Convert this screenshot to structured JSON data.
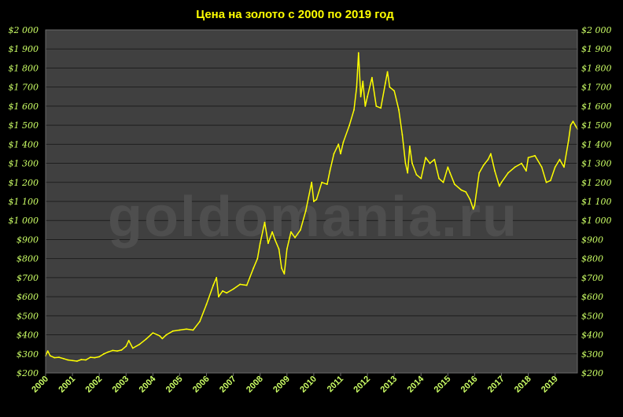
{
  "title": "Цена на золото с 2000 по 2019 год",
  "watermark": "goldomania.ru",
  "colors": {
    "background": "#000000",
    "plot_area": "#404040",
    "gridline": "#1e1e1e",
    "line": "#ffff00",
    "tick_label": "#ccff66",
    "title": "#ffff00",
    "watermark": "#4e4e4e"
  },
  "chart_data": {
    "type": "line",
    "title": "Цена на золото с 2000 по 2019 год",
    "xlabel": "",
    "ylabel": "",
    "ylim": [
      200,
      2000
    ],
    "xlim": [
      2000,
      2019.83
    ],
    "grid": "horizontal",
    "y_ticks": [
      {
        "value": 2000,
        "label": "$2 000"
      },
      {
        "value": 1900,
        "label": "$1 900"
      },
      {
        "value": 1800,
        "label": "$1 800"
      },
      {
        "value": 1700,
        "label": "$1 700"
      },
      {
        "value": 1600,
        "label": "$1 600"
      },
      {
        "value": 1500,
        "label": "$1 500"
      },
      {
        "value": 1400,
        "label": "$1 400"
      },
      {
        "value": 1300,
        "label": "$1 300"
      },
      {
        "value": 1200,
        "label": "$1 200"
      },
      {
        "value": 1100,
        "label": "$1 100"
      },
      {
        "value": 1000,
        "label": "$1 000"
      },
      {
        "value": 900,
        "label": "$900"
      },
      {
        "value": 800,
        "label": "$800"
      },
      {
        "value": 700,
        "label": "$700"
      },
      {
        "value": 600,
        "label": "$600"
      },
      {
        "value": 500,
        "label": "$500"
      },
      {
        "value": 400,
        "label": "$400"
      },
      {
        "value": 300,
        "label": "$300"
      },
      {
        "value": 200,
        "label": "$200"
      }
    ],
    "x_ticks": [
      {
        "value": 2000,
        "label": "2000"
      },
      {
        "value": 2001,
        "label": "2001"
      },
      {
        "value": 2002,
        "label": "2002"
      },
      {
        "value": 2003,
        "label": "2003"
      },
      {
        "value": 2004,
        "label": "2004"
      },
      {
        "value": 2005,
        "label": "2005"
      },
      {
        "value": 2006,
        "label": "2006"
      },
      {
        "value": 2007,
        "label": "2007"
      },
      {
        "value": 2008,
        "label": "2008"
      },
      {
        "value": 2009,
        "label": "2009"
      },
      {
        "value": 2010,
        "label": "2010"
      },
      {
        "value": 2011,
        "label": "2011"
      },
      {
        "value": 2012,
        "label": "2012"
      },
      {
        "value": 2013,
        "label": "2013"
      },
      {
        "value": 2014,
        "label": "2014"
      },
      {
        "value": 2015,
        "label": "2015"
      },
      {
        "value": 2016,
        "label": "2016"
      },
      {
        "value": 2017,
        "label": "2017"
      },
      {
        "value": 2018,
        "label": "2018"
      },
      {
        "value": 2019,
        "label": "2019"
      }
    ],
    "series": [
      {
        "x": [
          2000.0,
          2000.08,
          2000.17,
          2000.33,
          2000.5,
          2000.67,
          2000.83,
          2001.0,
          2001.17,
          2001.33,
          2001.5,
          2001.67,
          2001.83,
          2002.0,
          2002.17,
          2002.33,
          2002.5,
          2002.67,
          2002.83,
          2003.0,
          2003.1,
          2003.25,
          2003.5,
          2003.75,
          2004.0,
          2004.25,
          2004.35,
          2004.5,
          2004.75,
          2005.0,
          2005.25,
          2005.5,
          2005.75,
          2006.0,
          2006.25,
          2006.37,
          2006.45,
          2006.6,
          2006.75,
          2007.0,
          2007.25,
          2007.5,
          2007.75,
          2007.9,
          2008.0,
          2008.17,
          2008.3,
          2008.45,
          2008.55,
          2008.7,
          2008.8,
          2008.9,
          2009.0,
          2009.15,
          2009.3,
          2009.5,
          2009.7,
          2009.92,
          2010.0,
          2010.1,
          2010.3,
          2010.5,
          2010.6,
          2010.75,
          2010.92,
          2011.0,
          2011.1,
          2011.33,
          2011.5,
          2011.6,
          2011.67,
          2011.75,
          2011.83,
          2011.92,
          2012.0,
          2012.17,
          2012.33,
          2012.5,
          2012.67,
          2012.75,
          2012.83,
          2013.0,
          2013.17,
          2013.3,
          2013.42,
          2013.5,
          2013.58,
          2013.67,
          2013.83,
          2014.0,
          2014.17,
          2014.33,
          2014.5,
          2014.67,
          2014.83,
          2015.0,
          2015.08,
          2015.25,
          2015.5,
          2015.67,
          2015.83,
          2015.95,
          2016.0,
          2016.17,
          2016.33,
          2016.5,
          2016.6,
          2016.75,
          2016.92,
          2017.0,
          2017.25,
          2017.5,
          2017.75,
          2017.92,
          2018.0,
          2018.25,
          2018.5,
          2018.67,
          2018.83,
          2019.0,
          2019.17,
          2019.33,
          2019.5,
          2019.58,
          2019.67,
          2019.75,
          2019.83
        ],
        "y": [
          290,
          315,
          290,
          280,
          282,
          275,
          268,
          265,
          262,
          270,
          268,
          282,
          280,
          285,
          300,
          310,
          318,
          315,
          320,
          340,
          370,
          330,
          350,
          378,
          410,
          395,
          380,
          400,
          420,
          425,
          430,
          425,
          470,
          560,
          660,
          700,
          600,
          630,
          620,
          640,
          665,
          660,
          750,
          800,
          880,
          990,
          880,
          940,
          900,
          850,
          750,
          720,
          850,
          940,
          910,
          950,
          1050,
          1200,
          1100,
          1110,
          1200,
          1190,
          1260,
          1350,
          1400,
          1350,
          1410,
          1500,
          1580,
          1700,
          1880,
          1650,
          1730,
          1600,
          1650,
          1750,
          1600,
          1590,
          1720,
          1780,
          1700,
          1680,
          1580,
          1450,
          1300,
          1250,
          1390,
          1300,
          1240,
          1220,
          1330,
          1300,
          1320,
          1220,
          1200,
          1280,
          1250,
          1190,
          1160,
          1150,
          1110,
          1060,
          1080,
          1250,
          1290,
          1320,
          1350,
          1260,
          1180,
          1200,
          1250,
          1280,
          1300,
          1260,
          1330,
          1340,
          1280,
          1200,
          1210,
          1280,
          1320,
          1280,
          1420,
          1500,
          1520,
          1500,
          1480
        ]
      }
    ]
  }
}
